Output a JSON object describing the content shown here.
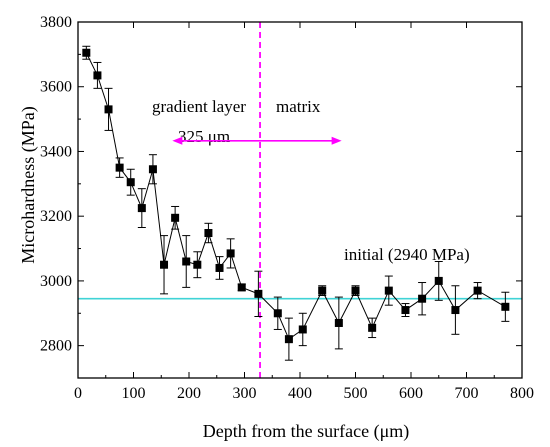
{
  "chart_data": {
    "type": "line",
    "xlabel": "Depth from the surface (μm)",
    "ylabel": "Microhardness (MPa)",
    "xlim": [
      0,
      800
    ],
    "ylim": [
      2700,
      3800
    ],
    "xticks": [
      0,
      100,
      200,
      300,
      400,
      500,
      600,
      700,
      800
    ],
    "yticks": [
      2800,
      3000,
      3200,
      3400,
      3600,
      3800
    ],
    "grid": false,
    "series": [
      {
        "marker": "square",
        "color": "#000000",
        "points": [
          {
            "x": 15,
            "y": 3705,
            "err": 20
          },
          {
            "x": 35,
            "y": 3635,
            "err": 40
          },
          {
            "x": 55,
            "y": 3530,
            "err": 65
          },
          {
            "x": 75,
            "y": 3350,
            "err": 30
          },
          {
            "x": 95,
            "y": 3305,
            "err": 40
          },
          {
            "x": 115,
            "y": 3225,
            "err": 60
          },
          {
            "x": 135,
            "y": 3345,
            "err": 45
          },
          {
            "x": 155,
            "y": 3050,
            "err": 90
          },
          {
            "x": 175,
            "y": 3195,
            "err": 35
          },
          {
            "x": 195,
            "y": 3060,
            "err": 80
          },
          {
            "x": 215,
            "y": 3050,
            "err": 40
          },
          {
            "x": 235,
            "y": 3148,
            "err": 30
          },
          {
            "x": 255,
            "y": 3040,
            "err": 35
          },
          {
            "x": 275,
            "y": 3085,
            "err": 45
          },
          {
            "x": 295,
            "y": 2980,
            "err": 10
          },
          {
            "x": 325,
            "y": 2960,
            "err": 70
          },
          {
            "x": 360,
            "y": 2900,
            "err": 50
          },
          {
            "x": 380,
            "y": 2820,
            "err": 65
          },
          {
            "x": 405,
            "y": 2850,
            "err": 50
          },
          {
            "x": 440,
            "y": 2970,
            "err": 15
          },
          {
            "x": 470,
            "y": 2870,
            "err": 80
          },
          {
            "x": 500,
            "y": 2970,
            "err": 15
          },
          {
            "x": 530,
            "y": 2855,
            "err": 30
          },
          {
            "x": 560,
            "y": 2970,
            "err": 45
          },
          {
            "x": 590,
            "y": 2910,
            "err": 20
          },
          {
            "x": 620,
            "y": 2945,
            "err": 50
          },
          {
            "x": 650,
            "y": 3000,
            "err": 60
          },
          {
            "x": 680,
            "y": 2910,
            "err": 75
          },
          {
            "x": 720,
            "y": 2970,
            "err": 25
          },
          {
            "x": 770,
            "y": 2920,
            "err": 45
          }
        ]
      }
    ],
    "reference_lines": [
      {
        "type": "horizontal",
        "y": 2945,
        "color": "#3fd3d6",
        "style": "solid",
        "label": "initial (2940 MPa)"
      },
      {
        "type": "vertical",
        "x": 328,
        "color": "#ff00ff",
        "style": "dashed"
      }
    ],
    "annotations": {
      "left_region": "gradient layer",
      "right_region": "matrix",
      "depth": "325 μm",
      "arrow_color": "#ff00ff",
      "arrow_x": [
        170,
        475
      ],
      "arrow_y": 3433
    }
  }
}
